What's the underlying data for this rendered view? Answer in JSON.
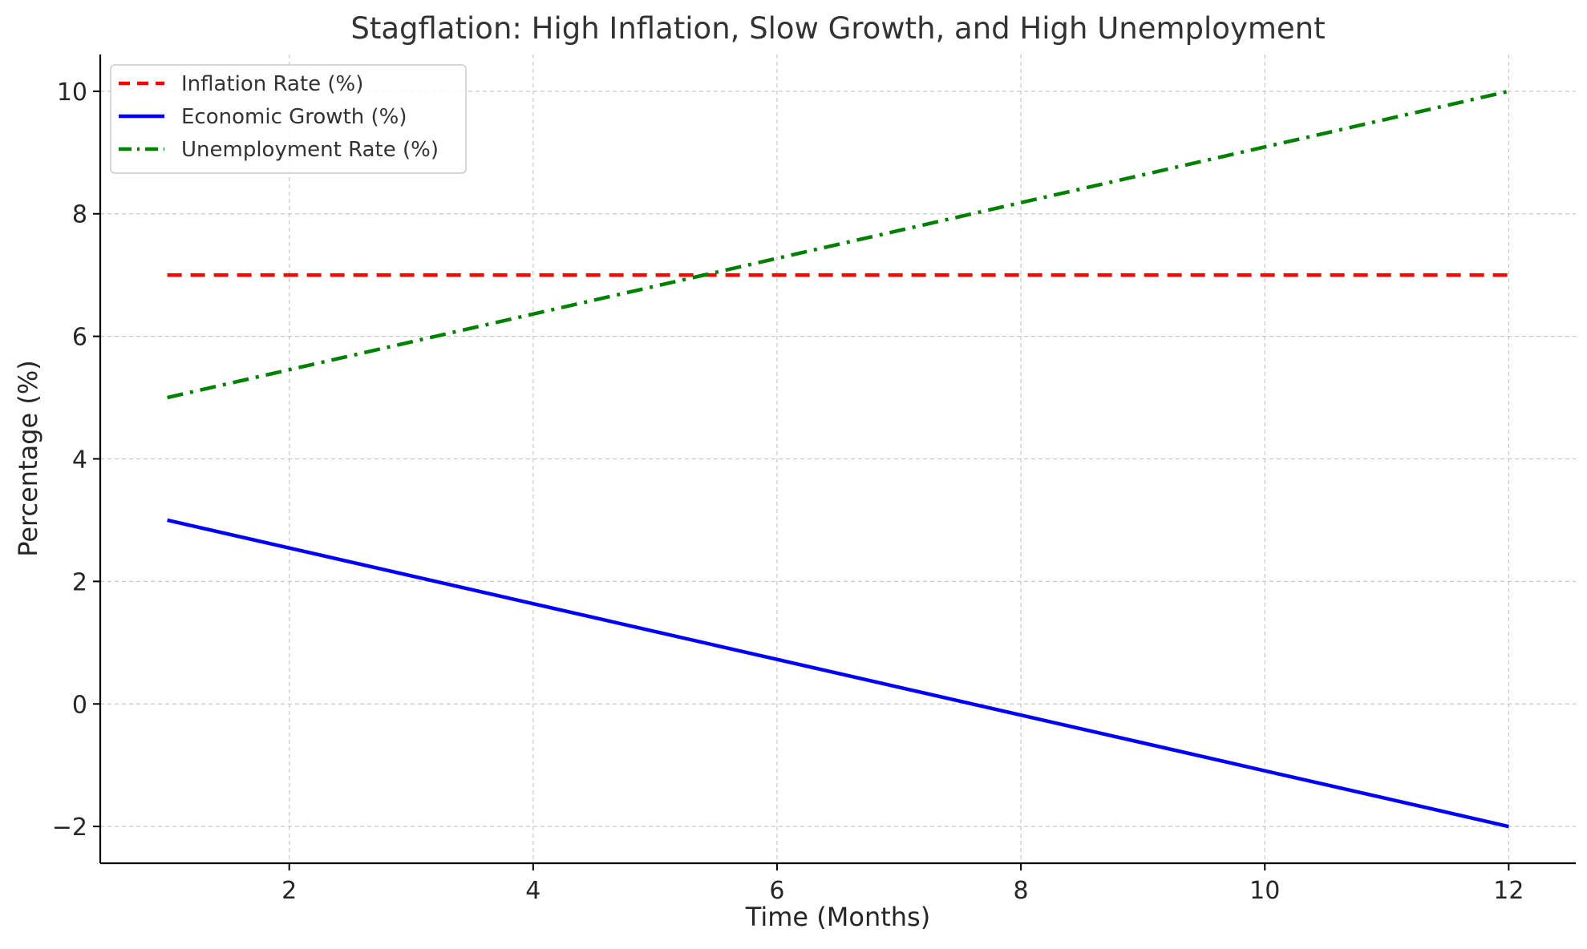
{
  "chart_data": {
    "type": "line",
    "title": "Stagflation: High Inflation, Slow Growth, and High Unemployment",
    "xlabel": "Time (Months)",
    "ylabel": "Percentage (%)",
    "x": [
      1,
      2,
      3,
      4,
      5,
      6,
      7,
      8,
      9,
      10,
      11,
      12
    ],
    "xlim": [
      0.45,
      12.55
    ],
    "ylim": [
      -2.6,
      10.6
    ],
    "xticks": [
      2,
      4,
      6,
      8,
      10,
      12
    ],
    "yticks": [
      -2,
      0,
      2,
      4,
      6,
      8,
      10
    ],
    "x_tick_labels": [
      "2",
      "4",
      "6",
      "8",
      "10",
      "12"
    ],
    "y_tick_labels": [
      "−2",
      "0",
      "2",
      "4",
      "6",
      "8",
      "10"
    ],
    "grid": true,
    "legend_position": "upper-left",
    "series": [
      {
        "name": "Inflation Rate (%)",
        "color": "#ff0000",
        "linestyle": "dashed",
        "values": [
          7,
          7,
          7,
          7,
          7,
          7,
          7,
          7,
          7,
          7,
          7,
          7
        ]
      },
      {
        "name": "Economic Growth (%)",
        "color": "#0000ff",
        "linestyle": "solid",
        "values": [
          3,
          2.545,
          2.091,
          1.636,
          1.182,
          0.727,
          0.273,
          -0.182,
          -0.636,
          -1.091,
          -1.545,
          -2
        ]
      },
      {
        "name": "Unemployment Rate (%)",
        "color": "#008000",
        "linestyle": "dashdot",
        "values": [
          5,
          5.455,
          5.909,
          6.364,
          6.818,
          7.273,
          7.727,
          8.182,
          8.636,
          9.091,
          9.545,
          10
        ]
      }
    ]
  }
}
